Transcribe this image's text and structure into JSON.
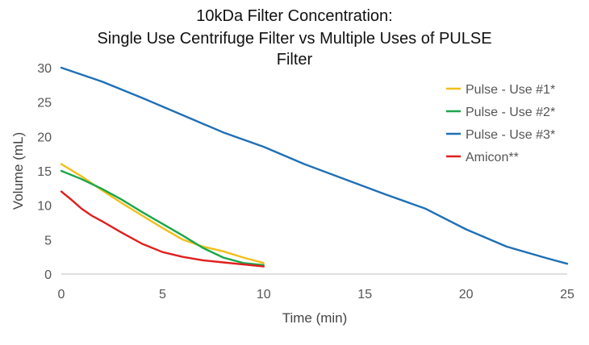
{
  "chart_data": {
    "type": "line",
    "title_lines": [
      "10kDa Filter Concentration:",
      "Single Use Centrifuge Filter vs Multiple Uses of PULSE",
      "Filter"
    ],
    "xlabel": "Time (min)",
    "ylabel": "Volume (mL)",
    "xlim": [
      0,
      25
    ],
    "ylim": [
      0,
      30
    ],
    "xticks": [
      0,
      5,
      10,
      15,
      20,
      25
    ],
    "yticks": [
      0,
      5,
      10,
      15,
      20,
      25,
      30
    ],
    "grid": false,
    "legend_position": "top-right",
    "series": [
      {
        "name": "Pulse - Use #1*",
        "color": "#F2BE1A",
        "points": [
          [
            0,
            16
          ],
          [
            1,
            14.2
          ],
          [
            2,
            12.2
          ],
          [
            3,
            10.3
          ],
          [
            4,
            8.5
          ],
          [
            5,
            6.7
          ],
          [
            6,
            5.0
          ],
          [
            7,
            4.0
          ],
          [
            8,
            3.3
          ],
          [
            9,
            2.4
          ],
          [
            10,
            1.6
          ]
        ]
      },
      {
        "name": "Pulse - Use #2*",
        "color": "#1AA64A",
        "points": [
          [
            0,
            15
          ],
          [
            1,
            13.8
          ],
          [
            2,
            12.4
          ],
          [
            3,
            10.8
          ],
          [
            4,
            9.0
          ],
          [
            5,
            7.3
          ],
          [
            6,
            5.6
          ],
          [
            7,
            3.8
          ],
          [
            8,
            2.4
          ],
          [
            9,
            1.6
          ],
          [
            10,
            1.3
          ]
        ]
      },
      {
        "name": "Pulse - Use #3*",
        "color": "#1F6FB5",
        "points": [
          [
            0,
            30
          ],
          [
            2,
            28.0
          ],
          [
            4,
            25.6
          ],
          [
            6,
            23.1
          ],
          [
            8,
            20.6
          ],
          [
            10,
            18.5
          ],
          [
            12,
            16.0
          ],
          [
            14,
            13.8
          ],
          [
            16,
            11.6
          ],
          [
            18,
            9.5
          ],
          [
            20,
            6.5
          ],
          [
            22,
            4.0
          ],
          [
            24,
            2.3
          ],
          [
            25,
            1.5
          ]
        ]
      },
      {
        "name": "Amicon**",
        "color": "#E01E1E",
        "points": [
          [
            0,
            12
          ],
          [
            0.5,
            10.8
          ],
          [
            1,
            9.5
          ],
          [
            1.5,
            8.5
          ],
          [
            2,
            7.7
          ],
          [
            3,
            6.0
          ],
          [
            4,
            4.4
          ],
          [
            5,
            3.2
          ],
          [
            6,
            2.5
          ],
          [
            7,
            2.0
          ],
          [
            8,
            1.7
          ],
          [
            9,
            1.4
          ],
          [
            10,
            1.1
          ]
        ]
      }
    ]
  }
}
